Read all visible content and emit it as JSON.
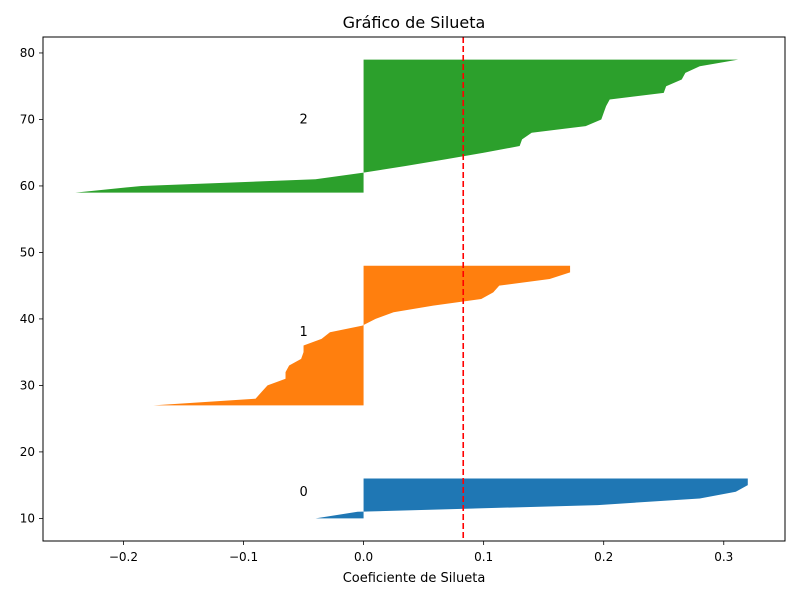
{
  "chart_data": {
    "type": "area",
    "title": "Gráfico de Silueta",
    "xlabel": "Coeficiente de Silueta",
    "ylabel": "",
    "xlim": [
      -0.267,
      0.351
    ],
    "ylim": [
      6.6,
      82.4
    ],
    "grid": false,
    "xticks": [
      {
        "value": -0.2,
        "label": "−0.2"
      },
      {
        "value": -0.1,
        "label": "−0.1"
      },
      {
        "value": 0.0,
        "label": "0.0"
      },
      {
        "value": 0.1,
        "label": "0.1"
      },
      {
        "value": 0.2,
        "label": "0.2"
      },
      {
        "value": 0.3,
        "label": "0.3"
      }
    ],
    "yticks": [
      {
        "value": 10,
        "label": "10"
      },
      {
        "value": 20,
        "label": "20"
      },
      {
        "value": 30,
        "label": "30"
      },
      {
        "value": 40,
        "label": "40"
      },
      {
        "value": 50,
        "label": "50"
      },
      {
        "value": 60,
        "label": "60"
      },
      {
        "value": 70,
        "label": "70"
      },
      {
        "value": 80,
        "label": "80"
      }
    ],
    "series": [
      {
        "label": "0",
        "color": "#1f77b4",
        "label_y": 14,
        "y_range": [
          10,
          16
        ],
        "values": [
          -0.04,
          -0.005,
          0.195,
          0.28,
          0.31,
          0.32,
          0.32
        ]
      },
      {
        "label": "1",
        "color": "#ff7f0e",
        "label_y": 38,
        "y_range": [
          27,
          48
        ],
        "values": [
          -0.175,
          -0.09,
          -0.085,
          -0.08,
          -0.065,
          -0.065,
          -0.062,
          -0.052,
          -0.05,
          -0.05,
          -0.035,
          -0.028,
          -0.001,
          0.01,
          0.025,
          0.058,
          0.098,
          0.108,
          0.113,
          0.155,
          0.172,
          0.172
        ]
      },
      {
        "label": "2",
        "color": "#2ca02c",
        "label_y": 70,
        "y_range": [
          59,
          79
        ],
        "values": [
          -0.24,
          -0.185,
          -0.04,
          -0.0,
          0.035,
          0.068,
          0.1,
          0.13,
          0.132,
          0.14,
          0.185,
          0.198,
          0.2,
          0.202,
          0.205,
          0.25,
          0.252,
          0.265,
          0.268,
          0.28,
          0.312
        ]
      }
    ],
    "annotations": [
      {
        "type": "vline",
        "x": 0.083,
        "color": "#ff0000",
        "style": "dashed"
      }
    ]
  }
}
